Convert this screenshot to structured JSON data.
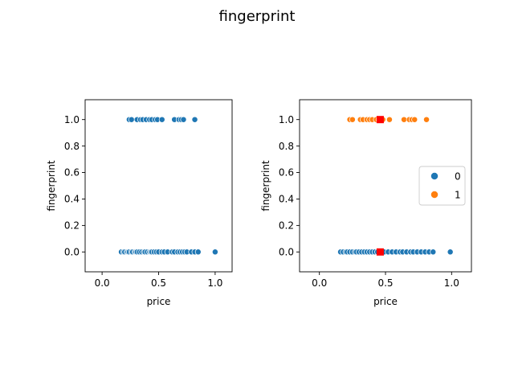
{
  "figure": {
    "title": "fingerprint"
  },
  "chart_data": [
    {
      "type": "scatter",
      "xlabel": "price",
      "ylabel": "fingerprint",
      "xlim": [
        -0.15,
        1.15
      ],
      "ylim": [
        -0.15,
        1.15
      ],
      "xticks": [
        "0.0",
        "0.5",
        "1.0"
      ],
      "yticks": [
        "0.0",
        "0.2",
        "0.4",
        "0.6",
        "0.8",
        "1.0"
      ],
      "series": [
        {
          "color": "#1f77b4",
          "points": [
            [
              0.17,
              0
            ],
            [
              0.19,
              0
            ],
            [
              0.2,
              0
            ],
            [
              0.22,
              0
            ],
            [
              0.23,
              0
            ],
            [
              0.24,
              0
            ],
            [
              0.26,
              0
            ],
            [
              0.27,
              0
            ],
            [
              0.29,
              0
            ],
            [
              0.3,
              0
            ],
            [
              0.31,
              0
            ],
            [
              0.33,
              0
            ],
            [
              0.35,
              0
            ],
            [
              0.37,
              0
            ],
            [
              0.38,
              0
            ],
            [
              0.4,
              0
            ],
            [
              0.42,
              0
            ],
            [
              0.43,
              0
            ],
            [
              0.44,
              0
            ],
            [
              0.46,
              0
            ],
            [
              0.48,
              0
            ],
            [
              0.5,
              0
            ],
            [
              0.53,
              0
            ],
            [
              0.55,
              0
            ],
            [
              0.58,
              0
            ],
            [
              0.62,
              0
            ],
            [
              0.64,
              0
            ],
            [
              0.67,
              0
            ],
            [
              0.69,
              0
            ],
            [
              0.71,
              0
            ],
            [
              0.73,
              0
            ],
            [
              0.75,
              0
            ],
            [
              0.79,
              0
            ],
            [
              0.82,
              0
            ],
            [
              0.85,
              0
            ],
            [
              1.0,
              0
            ],
            [
              0.24,
              1
            ],
            [
              0.26,
              1
            ],
            [
              0.31,
              1
            ],
            [
              0.34,
              1
            ],
            [
              0.36,
              1
            ],
            [
              0.39,
              1
            ],
            [
              0.42,
              1
            ],
            [
              0.44,
              1
            ],
            [
              0.47,
              1
            ],
            [
              0.49,
              1
            ],
            [
              0.53,
              1
            ],
            [
              0.64,
              1
            ],
            [
              0.68,
              1
            ],
            [
              0.7,
              1
            ],
            [
              0.72,
              1
            ],
            [
              0.82,
              1
            ]
          ]
        }
      ]
    },
    {
      "type": "scatter",
      "xlabel": "price",
      "ylabel": "fingerprint",
      "xlim": [
        -0.15,
        1.15
      ],
      "ylim": [
        -0.15,
        1.15
      ],
      "xticks": [
        "0.0",
        "0.5",
        "1.0"
      ],
      "yticks": [
        "0.0",
        "0.2",
        "0.4",
        "0.6",
        "0.8",
        "1.0"
      ],
      "legend": "right",
      "series": [
        {
          "name": "0",
          "color": "#1f77b4",
          "points": [
            [
              0.16,
              0
            ],
            [
              0.18,
              0
            ],
            [
              0.2,
              0
            ],
            [
              0.21,
              0
            ],
            [
              0.23,
              0
            ],
            [
              0.25,
              0
            ],
            [
              0.27,
              0
            ],
            [
              0.28,
              0
            ],
            [
              0.3,
              0
            ],
            [
              0.32,
              0
            ],
            [
              0.34,
              0
            ],
            [
              0.36,
              0
            ],
            [
              0.38,
              0
            ],
            [
              0.4,
              0
            ],
            [
              0.42,
              0
            ],
            [
              0.44,
              0
            ],
            [
              0.46,
              0
            ],
            [
              0.49,
              0
            ],
            [
              0.52,
              0
            ],
            [
              0.55,
              0
            ],
            [
              0.58,
              0
            ],
            [
              0.61,
              0
            ],
            [
              0.63,
              0
            ],
            [
              0.66,
              0
            ],
            [
              0.69,
              0
            ],
            [
              0.71,
              0
            ],
            [
              0.74,
              0
            ],
            [
              0.77,
              0
            ],
            [
              0.8,
              0
            ],
            [
              0.83,
              0
            ],
            [
              0.86,
              0
            ],
            [
              0.99,
              0
            ]
          ]
        },
        {
          "name": "1",
          "color": "#ff7f0e",
          "points": [
            [
              0.23,
              1
            ],
            [
              0.25,
              1
            ],
            [
              0.31,
              1
            ],
            [
              0.33,
              1
            ],
            [
              0.36,
              1
            ],
            [
              0.38,
              1
            ],
            [
              0.4,
              1
            ],
            [
              0.43,
              1
            ],
            [
              0.45,
              1
            ],
            [
              0.48,
              1
            ],
            [
              0.53,
              1
            ],
            [
              0.64,
              1
            ],
            [
              0.68,
              1
            ],
            [
              0.7,
              1
            ],
            [
              0.72,
              1
            ],
            [
              0.81,
              1
            ]
          ]
        }
      ],
      "means": {
        "color": "#ff0000",
        "points": [
          [
            0.46,
            0
          ],
          [
            0.46,
            1
          ]
        ]
      }
    }
  ]
}
